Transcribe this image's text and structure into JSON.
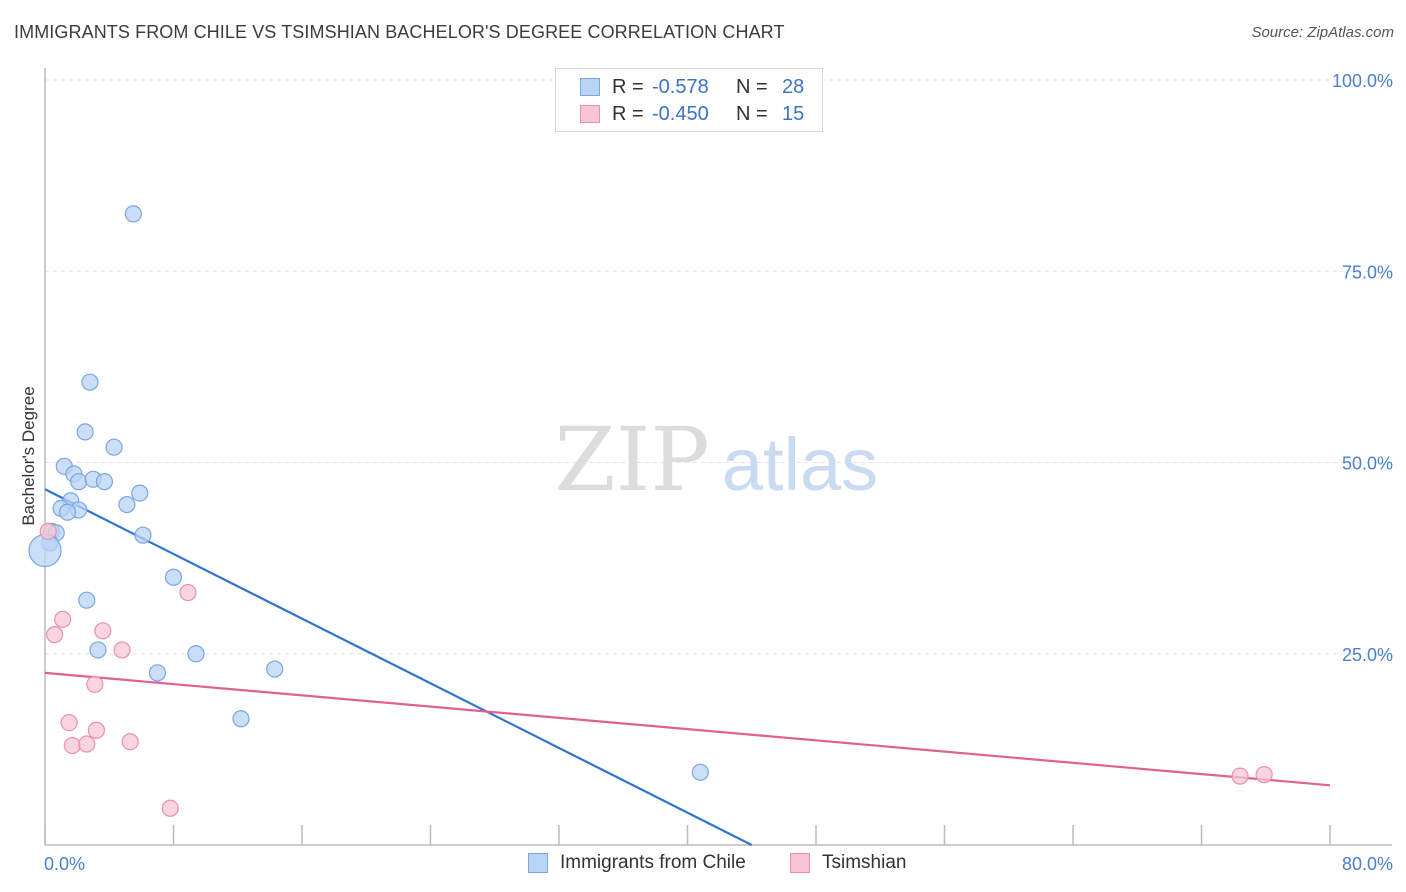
{
  "title": "IMMIGRANTS FROM CHILE VS TSIMSHIAN BACHELOR'S DEGREE CORRELATION CHART",
  "source": "Source: ZipAtlas.com",
  "watermark": {
    "zip": "ZIP",
    "atlas": "atlas"
  },
  "legend": {
    "rows": [
      {
        "r_label": "R =",
        "r_value": "-0.578",
        "n_label": "N =",
        "n_value": "28"
      },
      {
        "r_label": "R =",
        "r_value": "-0.450",
        "n_label": "N =",
        "n_value": "15"
      }
    ]
  },
  "bottom_legend": {
    "series1": "Immigrants from Chile",
    "series2": "Tsimshian"
  },
  "colors": {
    "blue_fill": "#b8d3f4",
    "blue_stroke": "#7aa6e0",
    "blue_line": "#2f74d0",
    "pink_fill": "#f8c5d4",
    "pink_stroke": "#e990ac",
    "pink_line": "#e0608f",
    "grid": "#e3e3e3",
    "axis_text": "#4a80cc"
  },
  "chart_data": {
    "type": "scatter",
    "title": "IMMIGRANTS FROM CHILE VS TSIMSHIAN BACHELOR'S DEGREE CORRELATION CHART",
    "xlabel": "",
    "ylabel": "Bachelor's Degree",
    "xlim": [
      0,
      80
    ],
    "ylim": [
      0,
      100
    ],
    "x_tick_labels": [
      "0.0%",
      "80.0%"
    ],
    "y_tick_values": [
      25,
      50,
      75,
      100
    ],
    "y_tick_labels": [
      "25.0%",
      "50.0%",
      "75.0%",
      "100.0%"
    ],
    "grid": true,
    "series": [
      {
        "name": "Immigrants from Chile",
        "r": -0.578,
        "n": 28,
        "points": [
          {
            "x": 5.5,
            "y": 82.5
          },
          {
            "x": 2.8,
            "y": 60.5
          },
          {
            "x": 2.5,
            "y": 54.0
          },
          {
            "x": 4.3,
            "y": 52.0
          },
          {
            "x": 1.2,
            "y": 49.5
          },
          {
            "x": 1.8,
            "y": 48.5
          },
          {
            "x": 2.1,
            "y": 47.5
          },
          {
            "x": 3.0,
            "y": 47.8
          },
          {
            "x": 3.7,
            "y": 47.5
          },
          {
            "x": 5.9,
            "y": 46.0
          },
          {
            "x": 1.6,
            "y": 45.0
          },
          {
            "x": 5.1,
            "y": 44.5
          },
          {
            "x": 1.0,
            "y": 44.0
          },
          {
            "x": 2.1,
            "y": 43.8
          },
          {
            "x": 1.4,
            "y": 43.5
          },
          {
            "x": 0.4,
            "y": 41.0
          },
          {
            "x": 0.7,
            "y": 40.8
          },
          {
            "x": 6.1,
            "y": 40.5
          },
          {
            "x": 0.3,
            "y": 39.5
          },
          {
            "x": 0.0,
            "y": 38.5
          },
          {
            "x": 8.0,
            "y": 35.0
          },
          {
            "x": 2.6,
            "y": 32.0
          },
          {
            "x": 3.3,
            "y": 25.5
          },
          {
            "x": 9.4,
            "y": 25.0
          },
          {
            "x": 7.0,
            "y": 22.5
          },
          {
            "x": 14.3,
            "y": 23.0
          },
          {
            "x": 12.2,
            "y": 16.5
          },
          {
            "x": 40.8,
            "y": 9.5
          }
        ],
        "trendline": {
          "x": [
            0,
            44
          ],
          "y": [
            46.5,
            0
          ]
        }
      },
      {
        "name": "Tsimshian",
        "r": -0.45,
        "n": 15,
        "points": [
          {
            "x": 0.2,
            "y": 41.0
          },
          {
            "x": 1.1,
            "y": 29.5
          },
          {
            "x": 0.6,
            "y": 27.5
          },
          {
            "x": 3.6,
            "y": 28.0
          },
          {
            "x": 4.8,
            "y": 25.5
          },
          {
            "x": 8.9,
            "y": 33.0
          },
          {
            "x": 3.1,
            "y": 21.0
          },
          {
            "x": 1.5,
            "y": 16.0
          },
          {
            "x": 3.2,
            "y": 15.0
          },
          {
            "x": 1.7,
            "y": 13.0
          },
          {
            "x": 2.6,
            "y": 13.2
          },
          {
            "x": 5.3,
            "y": 13.5
          },
          {
            "x": 7.8,
            "y": 4.8
          },
          {
            "x": 74.4,
            "y": 9.0
          },
          {
            "x": 75.9,
            "y": 9.2
          }
        ],
        "trendline": {
          "x": [
            0,
            80
          ],
          "y": [
            22.5,
            7.8
          ]
        }
      }
    ]
  }
}
